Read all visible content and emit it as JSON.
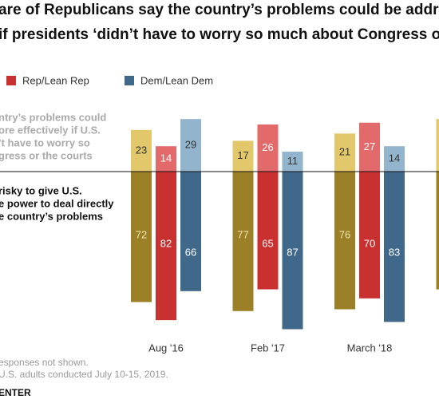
{
  "chart_data": {
    "type": "diverging-bar",
    "title_lines": [
      "are of Republicans say the country’s problems could be addressed",
      "if presidents ‘didn’t have to worry so much about Congress or the courts’"
    ],
    "above_label_lines": [
      "ntry’s problems could",
      "ore effectively if U.S.",
      "’t have to worry so",
      "gress or the courts"
    ],
    "below_label_lines": [
      "risky to give U.S.",
      "e power to deal directly",
      "e country’s problems"
    ],
    "categories": [
      "Aug '16",
      "Feb '17",
      "March '18",
      null
    ],
    "series": [
      {
        "color": "#9c8027",
        "light_color": "#e3c86b",
        "values": [
          23,
          17,
          21,
          29
        ],
        "values_below": [
          72,
          77,
          76,
          65
        ]
      },
      {
        "name": "Rep/Lean Rep",
        "color": "#c8312f",
        "light_color": "#e36a6a",
        "values": [
          14,
          26,
          27,
          null
        ],
        "values_below": [
          82,
          65,
          70,
          null
        ]
      },
      {
        "name": "Dem/Lean Dem",
        "color": "#40688b",
        "light_color": "#92b4cc",
        "values": [
          29,
          11,
          14,
          null
        ],
        "values_below": [
          66,
          87,
          83,
          null
        ]
      }
    ],
    "notes": [
      "esponses not shown.",
      "U.S. adults conducted July 10-15, 2019.",
      "ENTER"
    ]
  }
}
